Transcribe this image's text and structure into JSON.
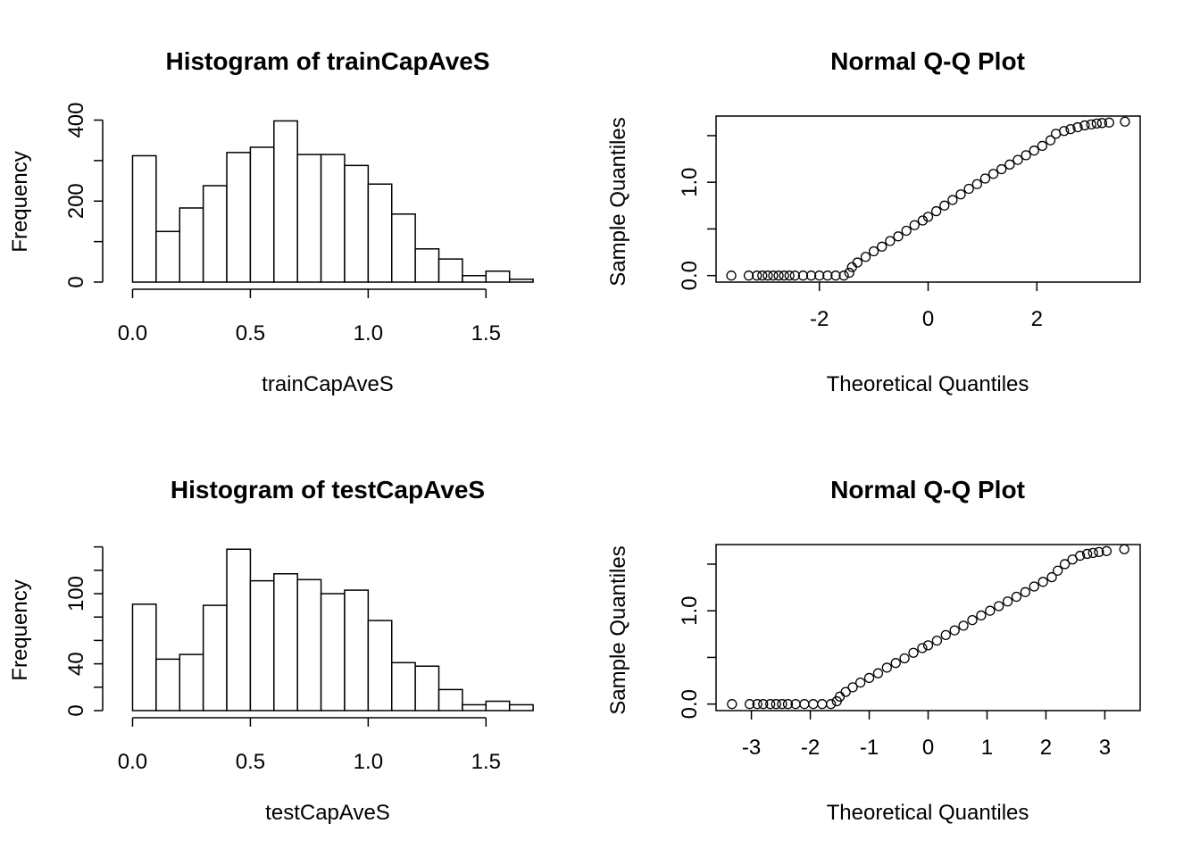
{
  "chart_data": [
    {
      "type": "histogram",
      "title": "Histogram of trainCapAveS",
      "xlabel": "trainCapAveS",
      "ylabel": "Frequency",
      "bin_width": 0.1,
      "bin_start": 0.0,
      "values": [
        312,
        125,
        183,
        238,
        320,
        333,
        398,
        315,
        315,
        288,
        242,
        168,
        82,
        57,
        16,
        27,
        7
      ],
      "xlim": [
        -0.07,
        1.73
      ],
      "ylim": [
        0,
        410
      ],
      "x_ticks": [
        0.0,
        0.5,
        1.0,
        1.5
      ],
      "x_tick_labels": [
        "0.0",
        "0.5",
        "1.0",
        "1.5"
      ],
      "y_ticks": [
        0,
        100,
        200,
        300,
        400
      ],
      "y_tick_labels": [
        "0",
        "",
        "200",
        "",
        "400"
      ],
      "grid": false
    },
    {
      "type": "scatter",
      "title": "Normal Q-Q Plot",
      "xlabel": "Theoretical Quantiles",
      "ylabel": "Sample Quantiles",
      "xlim": [
        -3.9,
        3.9
      ],
      "ylim": [
        -0.07,
        1.71
      ],
      "x_ticks": [
        -2,
        0,
        2
      ],
      "x_tick_labels": [
        "-2",
        "0",
        "2"
      ],
      "y_ticks": [
        0.0,
        0.5,
        1.0,
        1.5
      ],
      "y_tick_labels": [
        "0.0",
        "",
        "1.0",
        ""
      ],
      "points": [
        [
          -3.62,
          0.0
        ],
        [
          -3.3,
          0.0
        ],
        [
          -3.15,
          0.0
        ],
        [
          -3.05,
          0.0
        ],
        [
          -2.95,
          0.0
        ],
        [
          -2.85,
          0.0
        ],
        [
          -2.75,
          0.0
        ],
        [
          -2.65,
          0.0
        ],
        [
          -2.55,
          0.0
        ],
        [
          -2.45,
          0.0
        ],
        [
          -2.3,
          0.0
        ],
        [
          -2.15,
          0.0
        ],
        [
          -2.0,
          0.0
        ],
        [
          -1.85,
          0.0
        ],
        [
          -1.7,
          0.0
        ],
        [
          -1.55,
          0.0
        ],
        [
          -1.45,
          0.03
        ],
        [
          -1.4,
          0.09
        ],
        [
          -1.3,
          0.14
        ],
        [
          -1.15,
          0.2
        ],
        [
          -1.0,
          0.26
        ],
        [
          -0.85,
          0.31
        ],
        [
          -0.7,
          0.37
        ],
        [
          -0.55,
          0.42
        ],
        [
          -0.4,
          0.48
        ],
        [
          -0.25,
          0.54
        ],
        [
          -0.1,
          0.59
        ],
        [
          0.0,
          0.63
        ],
        [
          0.15,
          0.69
        ],
        [
          0.3,
          0.75
        ],
        [
          0.45,
          0.81
        ],
        [
          0.6,
          0.87
        ],
        [
          0.75,
          0.93
        ],
        [
          0.9,
          0.98
        ],
        [
          1.05,
          1.04
        ],
        [
          1.2,
          1.09
        ],
        [
          1.35,
          1.14
        ],
        [
          1.5,
          1.19
        ],
        [
          1.65,
          1.24
        ],
        [
          1.8,
          1.29
        ],
        [
          1.95,
          1.34
        ],
        [
          2.1,
          1.39
        ],
        [
          2.25,
          1.45
        ],
        [
          2.35,
          1.52
        ],
        [
          2.5,
          1.55
        ],
        [
          2.62,
          1.57
        ],
        [
          2.75,
          1.59
        ],
        [
          2.88,
          1.61
        ],
        [
          3.0,
          1.62
        ],
        [
          3.1,
          1.63
        ],
        [
          3.2,
          1.635
        ],
        [
          3.33,
          1.64
        ],
        [
          3.62,
          1.65
        ]
      ],
      "grid": false
    },
    {
      "type": "histogram",
      "title": "Histogram of testCapAveS",
      "xlabel": "testCapAveS",
      "ylabel": "Frequency",
      "bin_width": 0.1,
      "bin_start": 0.0,
      "values": [
        91,
        44,
        48,
        90,
        138,
        111,
        117,
        112,
        100,
        103,
        77,
        41,
        38,
        18,
        5,
        8,
        5
      ],
      "xlim": [
        -0.07,
        1.73
      ],
      "ylim": [
        0,
        142
      ],
      "x_ticks": [
        0.0,
        0.5,
        1.0,
        1.5
      ],
      "x_tick_labels": [
        "0.0",
        "0.5",
        "1.0",
        "1.5"
      ],
      "y_ticks": [
        0,
        20,
        40,
        60,
        80,
        100,
        120,
        140
      ],
      "y_tick_labels": [
        "0",
        "",
        "40",
        "",
        "",
        "100",
        "",
        ""
      ],
      "grid": false
    },
    {
      "type": "scatter",
      "title": "Normal Q-Q Plot",
      "xlabel": "Theoretical Quantiles",
      "ylabel": "Sample Quantiles",
      "xlim": [
        -3.6,
        3.6
      ],
      "ylim": [
        -0.07,
        1.71
      ],
      "x_ticks": [
        -3,
        -2,
        -1,
        0,
        1,
        2,
        3
      ],
      "x_tick_labels": [
        "-3",
        "-2",
        "-1",
        "0",
        "1",
        "2",
        "3"
      ],
      "y_ticks": [
        0.0,
        0.5,
        1.0,
        1.5
      ],
      "y_tick_labels": [
        "0.0",
        "",
        "1.0",
        ""
      ],
      "points": [
        [
          -3.33,
          0.0
        ],
        [
          -3.03,
          0.0
        ],
        [
          -2.9,
          0.0
        ],
        [
          -2.8,
          0.0
        ],
        [
          -2.68,
          0.0
        ],
        [
          -2.58,
          0.0
        ],
        [
          -2.48,
          0.0
        ],
        [
          -2.38,
          0.0
        ],
        [
          -2.25,
          0.0
        ],
        [
          -2.1,
          0.0
        ],
        [
          -1.95,
          0.0
        ],
        [
          -1.8,
          0.0
        ],
        [
          -1.65,
          0.0
        ],
        [
          -1.55,
          0.03
        ],
        [
          -1.5,
          0.08
        ],
        [
          -1.4,
          0.13
        ],
        [
          -1.28,
          0.18
        ],
        [
          -1.15,
          0.23
        ],
        [
          -1.0,
          0.28
        ],
        [
          -0.85,
          0.33
        ],
        [
          -0.7,
          0.39
        ],
        [
          -0.55,
          0.44
        ],
        [
          -0.4,
          0.49
        ],
        [
          -0.25,
          0.55
        ],
        [
          -0.1,
          0.6
        ],
        [
          0.0,
          0.63
        ],
        [
          0.15,
          0.68
        ],
        [
          0.3,
          0.74
        ],
        [
          0.45,
          0.79
        ],
        [
          0.6,
          0.84
        ],
        [
          0.75,
          0.9
        ],
        [
          0.9,
          0.95
        ],
        [
          1.05,
          1.0
        ],
        [
          1.2,
          1.05
        ],
        [
          1.35,
          1.1
        ],
        [
          1.5,
          1.15
        ],
        [
          1.65,
          1.2
        ],
        [
          1.8,
          1.26
        ],
        [
          1.95,
          1.31
        ],
        [
          2.1,
          1.36
        ],
        [
          2.2,
          1.43
        ],
        [
          2.32,
          1.5
        ],
        [
          2.45,
          1.55
        ],
        [
          2.58,
          1.59
        ],
        [
          2.7,
          1.61
        ],
        [
          2.8,
          1.62
        ],
        [
          2.9,
          1.63
        ],
        [
          3.03,
          1.64
        ],
        [
          3.33,
          1.66
        ]
      ],
      "grid": false
    }
  ]
}
